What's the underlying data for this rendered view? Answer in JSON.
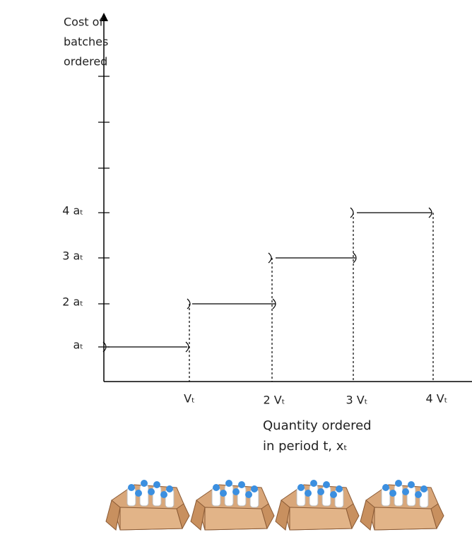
{
  "y_axis": {
    "label_lines": [
      "Cost of",
      "batches",
      "ordered"
    ],
    "tick_labels": [
      "aₜ",
      "2 aₜ",
      "3 aₜ",
      "4 aₜ"
    ]
  },
  "x_axis": {
    "tick_labels": [
      "Vₜ",
      "2 Vₜ",
      "3 Vₜ",
      "4 Vₜ"
    ],
    "label_lines": [
      "Quantity ordered",
      "in period t, xₜ"
    ]
  }
}
